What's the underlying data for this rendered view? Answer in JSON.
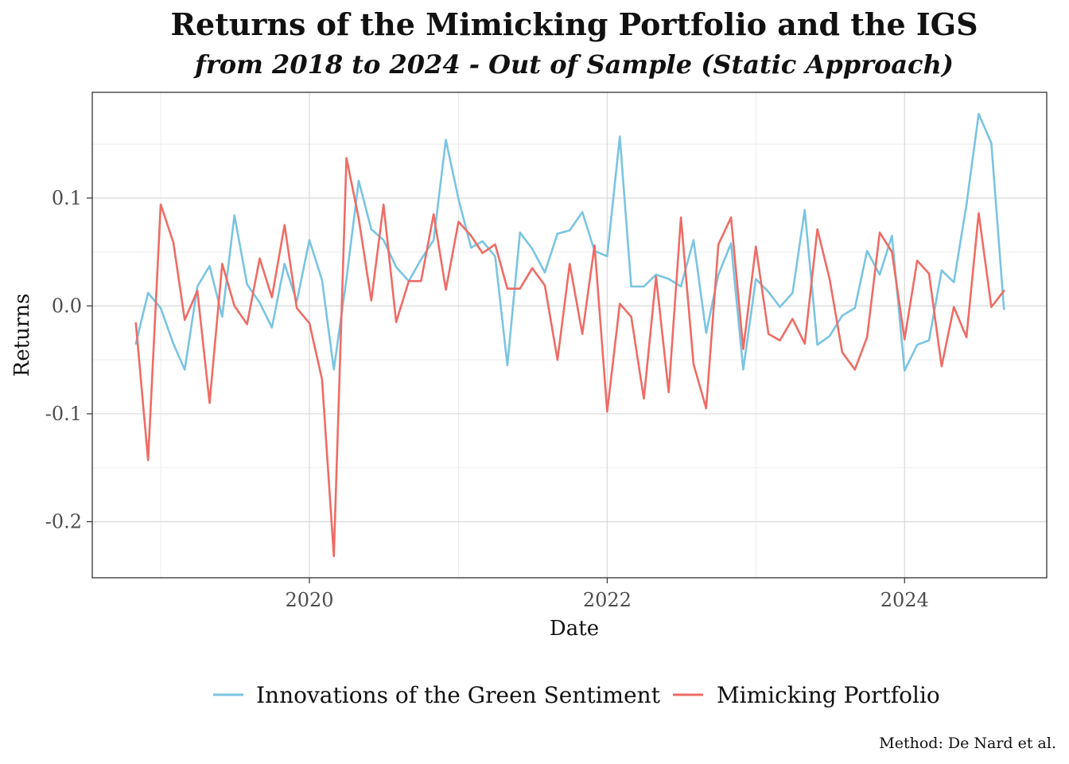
{
  "chart_data": {
    "type": "line",
    "title": "Returns of the Mimicking Portfolio and the IGS",
    "subtitle": "from 2018 to 2024 - Out of Sample (Static Approach)",
    "xlabel": "Date",
    "ylabel": "Returns",
    "caption": "Method: De Nard et al.",
    "x_ticks": [
      "2020",
      "2022",
      "2024"
    ],
    "y_ticks": [
      "0.1",
      "0.0",
      "-0.1",
      "-0.2"
    ],
    "xlim": [
      "2018-07-17",
      "2024-12-15"
    ],
    "ylim": [
      -0.252,
      0.198
    ],
    "grid": true,
    "legend_position": "bottom",
    "dates": [
      "2018-11-01",
      "2018-12-01",
      "2019-01-01",
      "2019-02-01",
      "2019-03-01",
      "2019-04-01",
      "2019-05-01",
      "2019-06-01",
      "2019-07-01",
      "2019-08-01",
      "2019-09-01",
      "2019-10-01",
      "2019-11-01",
      "2019-12-01",
      "2020-01-01",
      "2020-02-01",
      "2020-03-01",
      "2020-04-01",
      "2020-05-01",
      "2020-06-01",
      "2020-07-01",
      "2020-08-01",
      "2020-09-01",
      "2020-10-01",
      "2020-11-01",
      "2020-12-01",
      "2021-01-01",
      "2021-02-01",
      "2021-03-01",
      "2021-04-01",
      "2021-05-01",
      "2021-06-01",
      "2021-07-01",
      "2021-08-01",
      "2021-09-01",
      "2021-10-01",
      "2021-11-01",
      "2021-12-01",
      "2022-01-01",
      "2022-02-01",
      "2022-03-01",
      "2022-04-01",
      "2022-05-01",
      "2022-06-01",
      "2022-07-01",
      "2022-08-01",
      "2022-09-01",
      "2022-10-01",
      "2022-11-01",
      "2022-12-01",
      "2023-01-01",
      "2023-02-01",
      "2023-03-01",
      "2023-04-01",
      "2023-05-01",
      "2023-06-01",
      "2023-07-01",
      "2023-08-01",
      "2023-09-01",
      "2023-10-01",
      "2023-11-01",
      "2023-12-01",
      "2024-01-01",
      "2024-02-01",
      "2024-03-01",
      "2024-04-01",
      "2024-05-01",
      "2024-06-01",
      "2024-07-01",
      "2024-08-01",
      "2024-09-01"
    ],
    "series": [
      {
        "name": "Innovations of the Green Sentiment",
        "color": "#7ac4e2",
        "values": [
          -0.035,
          0.012,
          -0.002,
          -0.035,
          -0.059,
          0.018,
          0.037,
          -0.01,
          0.084,
          0.02,
          0.003,
          -0.02,
          0.039,
          0.004,
          0.061,
          0.024,
          -0.059,
          0.025,
          0.116,
          0.071,
          0.061,
          0.036,
          0.023,
          0.043,
          0.061,
          0.154,
          0.099,
          0.054,
          0.06,
          0.046,
          -0.055,
          0.068,
          0.053,
          0.031,
          0.067,
          0.07,
          0.087,
          0.051,
          0.046,
          0.157,
          0.018,
          0.018,
          0.029,
          0.025,
          0.018,
          0.061,
          -0.025,
          0.029,
          0.058,
          -0.059,
          0.025,
          0.013,
          -0.001,
          0.012,
          0.089,
          -0.036,
          -0.028,
          -0.009,
          -0.002,
          0.051,
          0.029,
          0.065,
          -0.06,
          -0.036,
          -0.032,
          0.033,
          0.022,
          0.094,
          0.178,
          0.151,
          -0.003
        ]
      },
      {
        "name": "Mimicking Portfolio",
        "color": "#ee6c65",
        "values": [
          -0.016,
          -0.143,
          0.094,
          0.059,
          -0.013,
          0.014,
          -0.09,
          0.039,
          0.0,
          -0.017,
          0.044,
          0.008,
          0.075,
          -0.002,
          -0.016,
          -0.068,
          -0.232,
          0.137,
          0.081,
          0.005,
          0.094,
          -0.015,
          0.023,
          0.023,
          0.085,
          0.015,
          0.078,
          0.065,
          0.049,
          0.057,
          0.016,
          0.016,
          0.035,
          0.019,
          -0.05,
          0.039,
          -0.026,
          0.056,
          -0.098,
          0.002,
          -0.01,
          -0.086,
          0.027,
          -0.08,
          0.082,
          -0.054,
          -0.095,
          0.057,
          0.082,
          -0.04,
          0.055,
          -0.026,
          -0.032,
          -0.012,
          -0.035,
          0.071,
          0.025,
          -0.043,
          -0.059,
          -0.029,
          0.068,
          0.05,
          -0.031,
          0.042,
          0.03,
          -0.056,
          -0.001,
          -0.029,
          0.086,
          -0.001,
          0.014
        ]
      }
    ]
  }
}
